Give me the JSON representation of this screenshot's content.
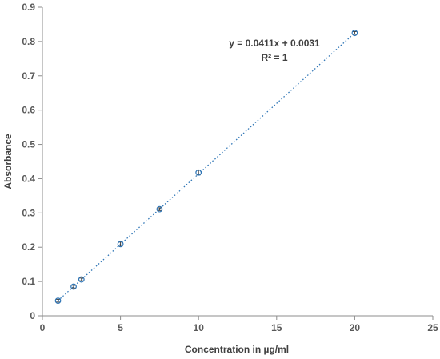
{
  "chart_data": {
    "type": "scatter",
    "x": [
      1,
      2,
      2.5,
      5,
      7.5,
      10,
      20
    ],
    "y": [
      0.044,
      0.085,
      0.106,
      0.209,
      0.311,
      0.418,
      0.825
    ],
    "y_error": [
      0.004,
      0.004,
      0.004,
      0.006,
      0.004,
      0.007,
      0.004
    ],
    "xlabel": "Concentration in µg/ml",
    "ylabel": "Absorbance",
    "xlim": [
      0,
      25
    ],
    "ylim": [
      0,
      0.9
    ],
    "xticks": [
      "0",
      "5",
      "10",
      "15",
      "20",
      "25"
    ],
    "yticks": [
      "0",
      "0.1",
      "0.2",
      "0.3",
      "0.4",
      "0.5",
      "0.6",
      "0.7",
      "0.8",
      "0.9"
    ],
    "grid": false,
    "marker_color": "#2E75B6",
    "trendline": {
      "type": "linear",
      "slope": 0.0411,
      "intercept": 0.0031,
      "x_range": [
        1,
        20
      ],
      "style": "dotted",
      "color": "#2E75B6",
      "equation_label": "y = 0.0411x + 0.0031",
      "r2_label": "R² = 1"
    }
  }
}
